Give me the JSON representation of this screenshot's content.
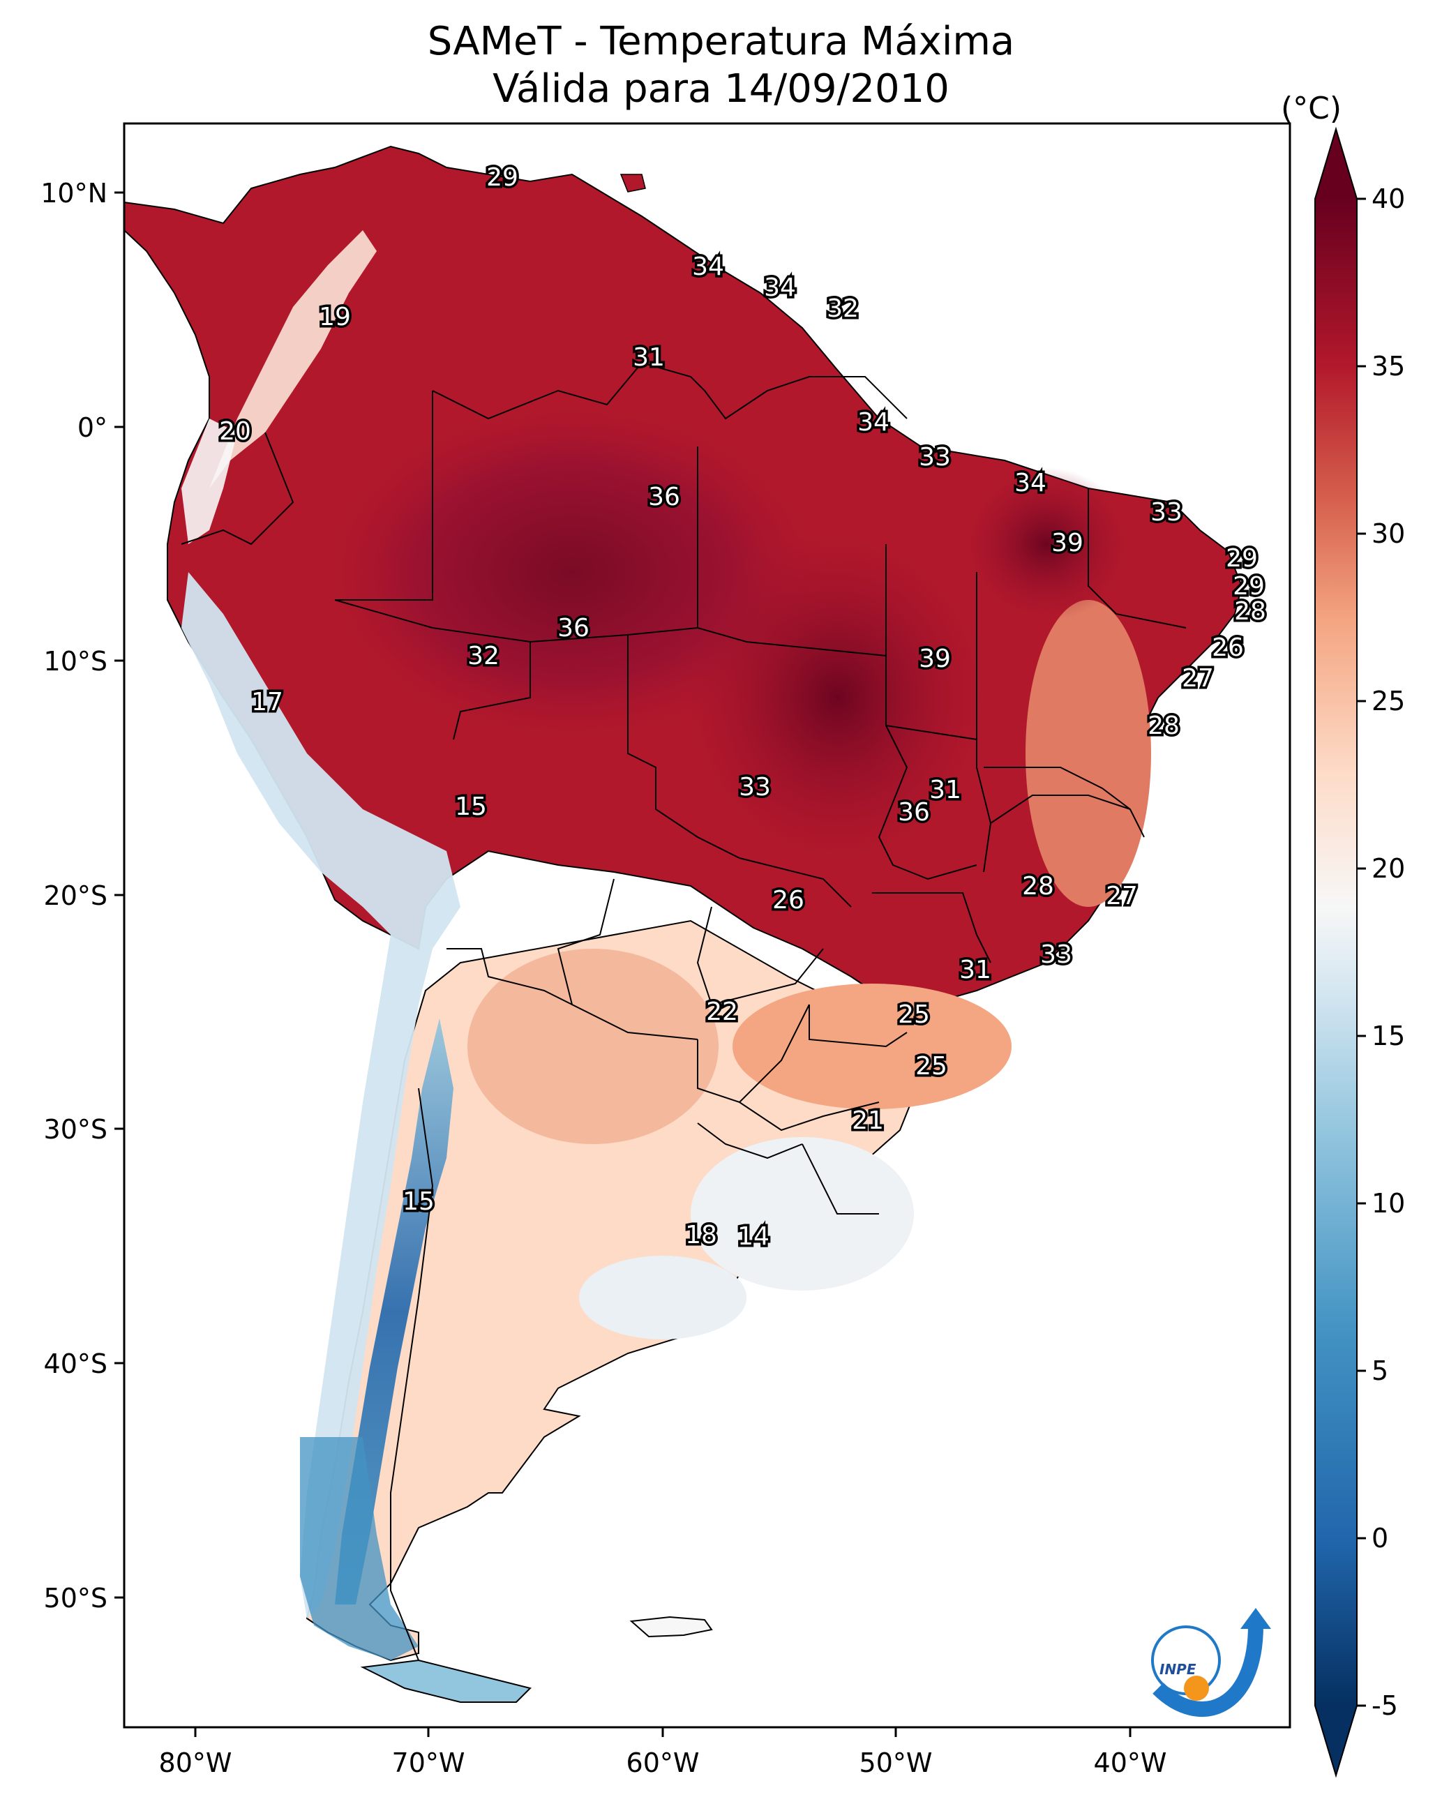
{
  "title": {
    "line1": "SAMeT - Temperatura Máxima",
    "line2": "Válida para 14/09/2010"
  },
  "axes": {
    "lon_labels": [
      "80°W",
      "70°W",
      "60°W",
      "50°W",
      "40°W"
    ],
    "lat_labels": [
      "10°N",
      "0°",
      "10°S",
      "20°S",
      "30°S",
      "40°S",
      "50°S"
    ]
  },
  "colorbar": {
    "unit": "(°C)",
    "ticks": [
      "40",
      "35",
      "30",
      "25",
      "20",
      "15",
      "10",
      "5",
      "0",
      "-5"
    ],
    "colors": {
      "max": "#67001f",
      "hot": "#b2182b",
      "warm": "#d6604d",
      "mild": "#f4a582",
      "light": "#fddbc7",
      "neutral": "#f7f7f7",
      "cool": "#d1e5f0",
      "cold": "#92c5de",
      "colder": "#4393c3",
      "coldest": "#2166ac",
      "min": "#053061"
    }
  },
  "city_values": [
    {
      "id": "v1",
      "text": "29"
    },
    {
      "id": "v2",
      "text": "34"
    },
    {
      "id": "v3",
      "text": "34"
    },
    {
      "id": "v4",
      "text": "32"
    },
    {
      "id": "v5",
      "text": "19"
    },
    {
      "id": "v6",
      "text": "31"
    },
    {
      "id": "v7",
      "text": "20"
    },
    {
      "id": "v8",
      "text": "34"
    },
    {
      "id": "v9",
      "text": "33"
    },
    {
      "id": "v10",
      "text": "34"
    },
    {
      "id": "v11",
      "text": "36"
    },
    {
      "id": "v12",
      "text": "33"
    },
    {
      "id": "v13",
      "text": "39"
    },
    {
      "id": "v14",
      "text": "29"
    },
    {
      "id": "v15",
      "text": "29"
    },
    {
      "id": "v16",
      "text": "28"
    },
    {
      "id": "v17",
      "text": "36"
    },
    {
      "id": "v18",
      "text": "32"
    },
    {
      "id": "v19",
      "text": "39"
    },
    {
      "id": "v20",
      "text": "26"
    },
    {
      "id": "v21",
      "text": "27"
    },
    {
      "id": "v22",
      "text": "17"
    },
    {
      "id": "v23",
      "text": "28"
    },
    {
      "id": "v24",
      "text": "33"
    },
    {
      "id": "v25",
      "text": "31"
    },
    {
      "id": "v26",
      "text": "36"
    },
    {
      "id": "v27",
      "text": "15"
    },
    {
      "id": "v28",
      "text": "28"
    },
    {
      "id": "v29",
      "text": "27"
    },
    {
      "id": "v30",
      "text": "26"
    },
    {
      "id": "v31",
      "text": "33"
    },
    {
      "id": "v32",
      "text": "31"
    },
    {
      "id": "v33",
      "text": "22"
    },
    {
      "id": "v34",
      "text": "25"
    },
    {
      "id": "v35",
      "text": "25"
    },
    {
      "id": "v36",
      "text": "21"
    },
    {
      "id": "v37",
      "text": "15"
    },
    {
      "id": "v38",
      "text": "18"
    },
    {
      "id": "v39",
      "text": "14"
    }
  ],
  "logo": {
    "text": "INPE"
  }
}
